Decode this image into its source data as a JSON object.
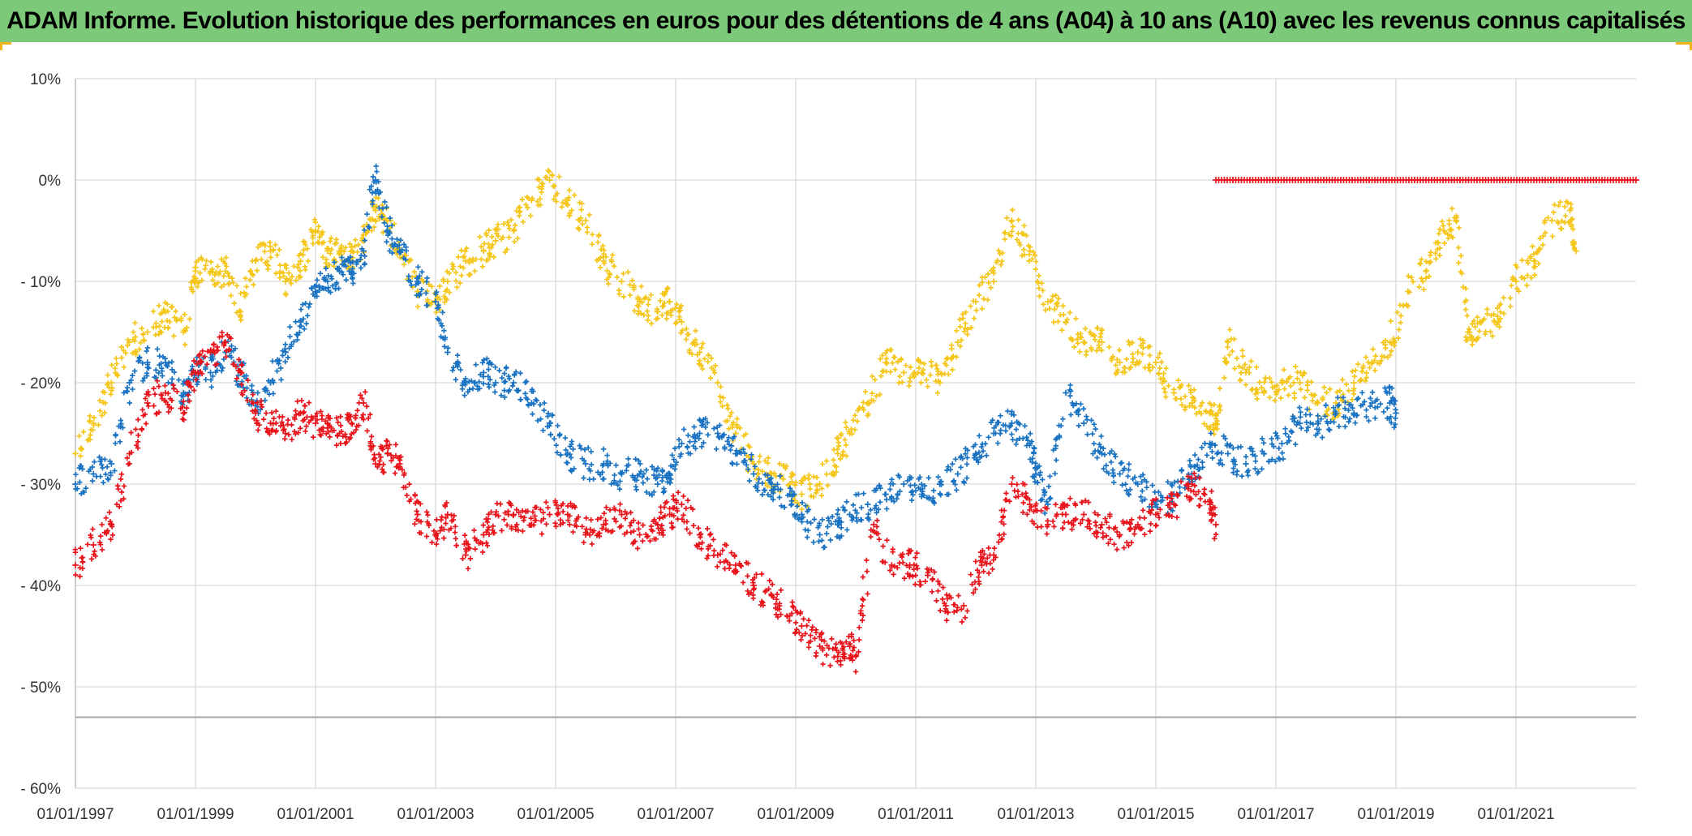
{
  "title": "ADAM Informe. Evolution historique des performances en euros pour des détentions de 4 ans (A04) à 10 ans (A10) avec les revenus connus capitalisés",
  "colors": {
    "title_bg": "#7dc97a",
    "corner_accent": "#f2b21b",
    "grid": "#d9d9d9",
    "series_red": "#e8141b",
    "series_blue": "#1a73c2",
    "series_yellow": "#f5c518"
  },
  "chart_data": {
    "type": "scatter",
    "marker": "cross",
    "title": "ADAM Informe. Evolution historique des performances en euros pour des détentions de 4 ans (A04) à 10 ans (A10) avec les revenus connus capitalisés",
    "xlabel": "",
    "ylabel": "",
    "xlim": [
      1997.0,
      2023.0
    ],
    "ylim": [
      -60,
      10
    ],
    "x_ticks": [
      1997,
      1999,
      2001,
      2003,
      2005,
      2007,
      2009,
      2011,
      2013,
      2015,
      2017,
      2019,
      2021
    ],
    "x_tick_labels": [
      "01/01/1997",
      "01/01/1999",
      "01/01/2001",
      "01/01/2003",
      "01/01/2005",
      "01/01/2007",
      "01/01/2009",
      "01/01/2011",
      "01/01/2013",
      "01/01/2015",
      "01/01/2017",
      "01/01/2019",
      "01/01/2021"
    ],
    "y_ticks": [
      10,
      0,
      -10,
      -20,
      -30,
      -40,
      -50,
      -60
    ],
    "y_tick_labels": [
      "10%",
      "0%",
      "- 10%",
      "- 20%",
      "- 30%",
      "- 40%",
      "- 50%",
      "- 60%"
    ],
    "reference_line": -53,
    "grid": true,
    "legend": "none",
    "series": [
      {
        "name": "red",
        "color": "#e8141b",
        "x": [
          1997.0,
          1997.3,
          1997.6,
          1997.9,
          1998.2,
          1998.5,
          1998.8,
          1999.0,
          1999.25,
          1999.5,
          1999.75,
          2000.0,
          2000.25,
          2000.5,
          2000.75,
          2001.0,
          2001.2,
          2001.4,
          2001.6,
          2001.8,
          2002.0,
          2002.2,
          2002.4,
          2002.7,
          2003.0,
          2003.2,
          2003.5,
          2003.8,
          2004.0,
          2004.3,
          2004.6,
          2004.9,
          2005.2,
          2005.5,
          2005.8,
          2006.1,
          2006.4,
          2006.7,
          2006.9,
          2007.1,
          2007.4,
          2007.7,
          2008.0,
          2008.3,
          2008.6,
          2008.9,
          2009.1,
          2009.4,
          2009.7,
          2009.9,
          2010.0,
          2010.3,
          2010.6,
          2010.9,
          2011.2,
          2011.5,
          2011.8,
          2012.1,
          2012.3,
          2012.6,
          2012.9,
          2013.2,
          2013.5,
          2013.8,
          2014.1,
          2014.4,
          2014.7,
          2015.0,
          2015.3,
          2015.6,
          2015.9,
          2016.0
        ],
        "y": [
          -38,
          -36,
          -34,
          -27,
          -22,
          -21,
          -23,
          -19,
          -17,
          -16,
          -19,
          -23,
          -24,
          -25,
          -23,
          -24,
          -24,
          -25,
          -24,
          -22,
          -28,
          -27,
          -28,
          -33,
          -35,
          -33,
          -37,
          -35,
          -33,
          -33,
          -34,
          -33,
          -33,
          -35,
          -34,
          -33,
          -35,
          -34,
          -33,
          -32,
          -35,
          -37,
          -38,
          -40,
          -41,
          -43,
          -44,
          -46,
          -47,
          -46,
          -47,
          -34,
          -38,
          -38,
          -39,
          -42,
          -42,
          -38,
          -37,
          -30,
          -32,
          -34,
          -33,
          -33,
          -34,
          -35,
          -34,
          -33,
          -32,
          -30,
          -32,
          -34
        ]
      },
      {
        "name": "blue",
        "color": "#1a73c2",
        "x": [
          1997.0,
          1997.3,
          1997.6,
          1997.9,
          1998.2,
          1998.5,
          1998.8,
          1999.0,
          1999.25,
          1999.5,
          1999.75,
          2000.0,
          2000.25,
          2000.5,
          2000.75,
          2001.0,
          2001.2,
          2001.4,
          2001.6,
          2001.8,
          2002.0,
          2002.2,
          2002.4,
          2002.7,
          2003.0,
          2003.2,
          2003.5,
          2003.8,
          2004.0,
          2004.3,
          2004.6,
          2004.9,
          2005.2,
          2005.5,
          2005.8,
          2006.1,
          2006.4,
          2006.7,
          2006.9,
          2007.1,
          2007.4,
          2007.7,
          2008.0,
          2008.3,
          2008.6,
          2008.9,
          2009.1,
          2009.4,
          2009.7,
          2009.9,
          2010.2,
          2010.5,
          2010.8,
          2011.1,
          2011.4,
          2011.7,
          2012.0,
          2012.3,
          2012.6,
          2012.9,
          2013.0,
          2013.2,
          2013.5,
          2013.8,
          2014.1,
          2014.4,
          2014.7,
          2015.0,
          2015.3,
          2015.6,
          2015.9,
          2016.2,
          2016.5,
          2016.8,
          2017.1,
          2017.4,
          2017.7,
          2018.0,
          2018.3,
          2018.6,
          2018.9,
          2019.0
        ],
        "y": [
          -30,
          -29,
          -28,
          -20,
          -18,
          -18,
          -21,
          -19,
          -19,
          -17,
          -19,
          -22,
          -20,
          -17,
          -14,
          -11,
          -10,
          -9,
          -9,
          -7,
          0,
          -5,
          -7,
          -10,
          -12,
          -17,
          -20,
          -19,
          -20,
          -20,
          -22,
          -24,
          -27,
          -28,
          -28,
          -29,
          -29,
          -30,
          -29,
          -26,
          -25,
          -25,
          -27,
          -29,
          -30,
          -31,
          -33,
          -35,
          -34,
          -33,
          -32,
          -31,
          -30,
          -31,
          -30,
          -29,
          -27,
          -25,
          -24,
          -26,
          -29,
          -32,
          -21,
          -24,
          -27,
          -29,
          -30,
          -32,
          -31,
          -29,
          -26,
          -27,
          -28,
          -27,
          -26,
          -24,
          -24,
          -23,
          -23,
          -22,
          -22,
          -23
        ]
      },
      {
        "name": "yellow",
        "color": "#f5c518",
        "x": [
          1997.0,
          1997.3,
          1997.6,
          1997.9,
          1998.2,
          1998.5,
          1998.8,
          1999.0,
          1999.25,
          1999.5,
          1999.75,
          2000.0,
          2000.25,
          2000.5,
          2000.75,
          2001.0,
          2001.2,
          2001.4,
          2001.6,
          2001.8,
          2002.0,
          2002.2,
          2002.4,
          2002.7,
          2003.0,
          2003.2,
          2003.5,
          2003.8,
          2004.0,
          2004.3,
          2004.6,
          2004.9,
          2005.2,
          2005.5,
          2005.8,
          2006.1,
          2006.4,
          2006.7,
          2006.9,
          2007.1,
          2007.4,
          2007.7,
          2008.0,
          2008.3,
          2008.6,
          2008.9,
          2009.1,
          2009.4,
          2009.7,
          2009.9,
          2010.2,
          2010.5,
          2010.8,
          2011.1,
          2011.4,
          2011.7,
          2012.0,
          2012.3,
          2012.6,
          2012.9,
          2013.2,
          2013.5,
          2013.8,
          2014.1,
          2014.4,
          2014.7,
          2015.0,
          2015.3,
          2015.6,
          2015.9,
          2016.0,
          2016.2,
          2016.5,
          2016.8,
          2017.1,
          2017.4,
          2017.7,
          2018.0,
          2018.3,
          2018.6,
          2018.9,
          2019.2,
          2019.5,
          2019.8,
          2020.0,
          2020.2,
          2020.4,
          2020.7,
          2021.0,
          2021.3,
          2021.6,
          2021.9,
          2022.0
        ],
        "y": [
          -27,
          -24,
          -20,
          -16,
          -15,
          -13,
          -15,
          -9,
          -9,
          -9,
          -13,
          -8,
          -7,
          -10,
          -8,
          -5,
          -7,
          -7,
          -8,
          -6,
          -3,
          -4,
          -7,
          -11,
          -12,
          -10,
          -8,
          -7,
          -6,
          -5,
          -2,
          0,
          -2,
          -4,
          -8,
          -10,
          -12,
          -13,
          -12,
          -14,
          -17,
          -20,
          -25,
          -28,
          -29,
          -30,
          -31,
          -30,
          -27,
          -25,
          -22,
          -18,
          -19,
          -19,
          -20,
          -16,
          -12,
          -10,
          -4,
          -7,
          -12,
          -14,
          -16,
          -16,
          -18,
          -17,
          -18,
          -21,
          -22,
          -23,
          -24,
          -16,
          -19,
          -21,
          -20,
          -20,
          -22,
          -22,
          -20,
          -18,
          -16,
          -11,
          -9,
          -5,
          -4,
          -15,
          -14,
          -14,
          -10,
          -8,
          -4,
          -3,
          -7
        ]
      },
      {
        "name": "red-flat",
        "color": "#e8141b",
        "x_range": [
          2016.0,
          2023.0
        ],
        "y": 0
      }
    ]
  }
}
